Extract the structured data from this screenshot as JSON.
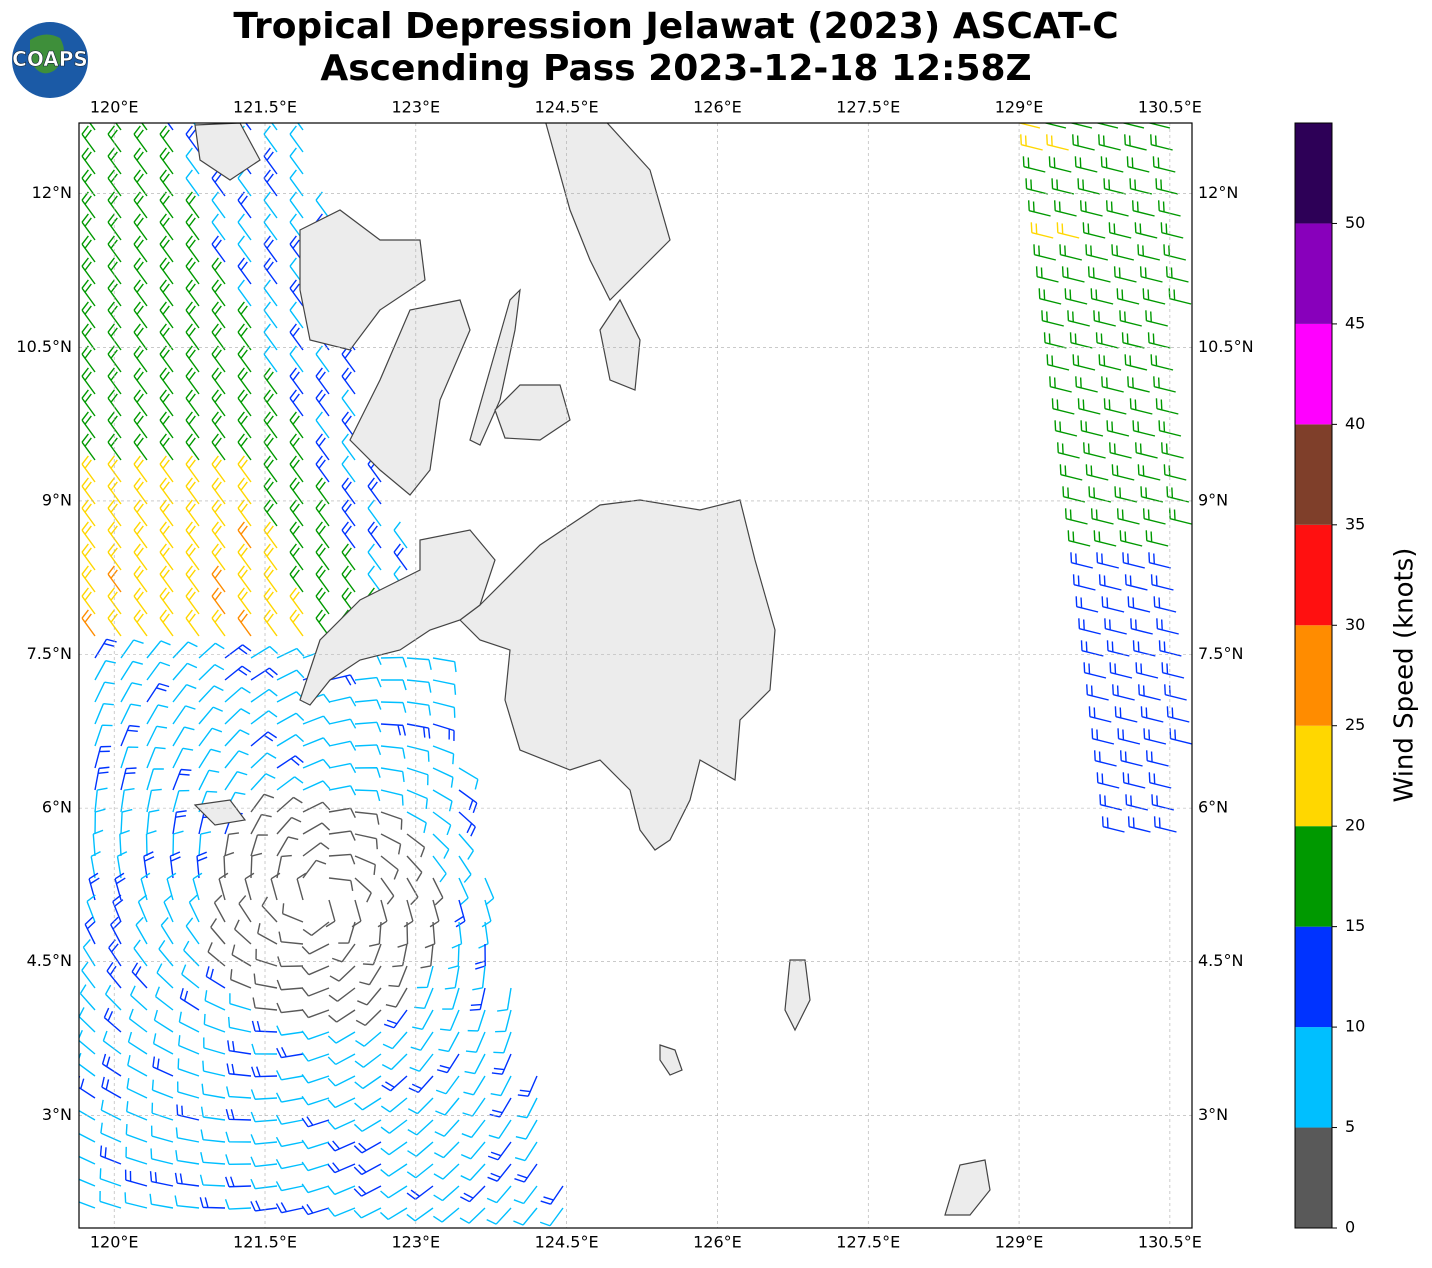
{
  "title": [
    "Tropical Depression Jelawat (2023) ASCAT-C",
    "Ascending Pass 2023-12-18 12:58Z"
  ],
  "logo": "COAPS",
  "map": {
    "xlim": [
      119.65,
      130.72
    ],
    "ylim": [
      1.9,
      12.69
    ],
    "xticks": [
      {
        "value": 120,
        "label": "120°E"
      },
      {
        "value": 121.5,
        "label": "121.5°E"
      },
      {
        "value": 123,
        "label": "123°E"
      },
      {
        "value": 124.5,
        "label": "124.5°E"
      },
      {
        "value": 126,
        "label": "126°E"
      },
      {
        "value": 127.5,
        "label": "127.5°E"
      },
      {
        "value": 129,
        "label": "129°E"
      },
      {
        "value": 130.5,
        "label": "130.5°E"
      }
    ],
    "yticks": [
      {
        "value": 3,
        "label": "3°N"
      },
      {
        "value": 4.5,
        "label": "4.5°N"
      },
      {
        "value": 6,
        "label": "6°N"
      },
      {
        "value": 7.5,
        "label": "7.5°N"
      },
      {
        "value": 9,
        "label": "9°N"
      },
      {
        "value": 10.5,
        "label": "10.5°N"
      },
      {
        "value": 12,
        "label": "12°N"
      }
    ],
    "grid": true
  },
  "colorbar": {
    "label": "Wind Speed (knots)",
    "lim": [
      0,
      55
    ],
    "ticks": [
      0,
      5,
      10,
      15,
      20,
      25,
      30,
      35,
      40,
      45,
      50
    ],
    "colors": [
      "#595959",
      "#00bfff",
      "#0033ff",
      "#009900",
      "#ffd700",
      "#ff8c00",
      "#ff1010",
      "#7f3f2a",
      "#ff00ff",
      "#8800bb",
      "#2d0057"
    ]
  }
}
